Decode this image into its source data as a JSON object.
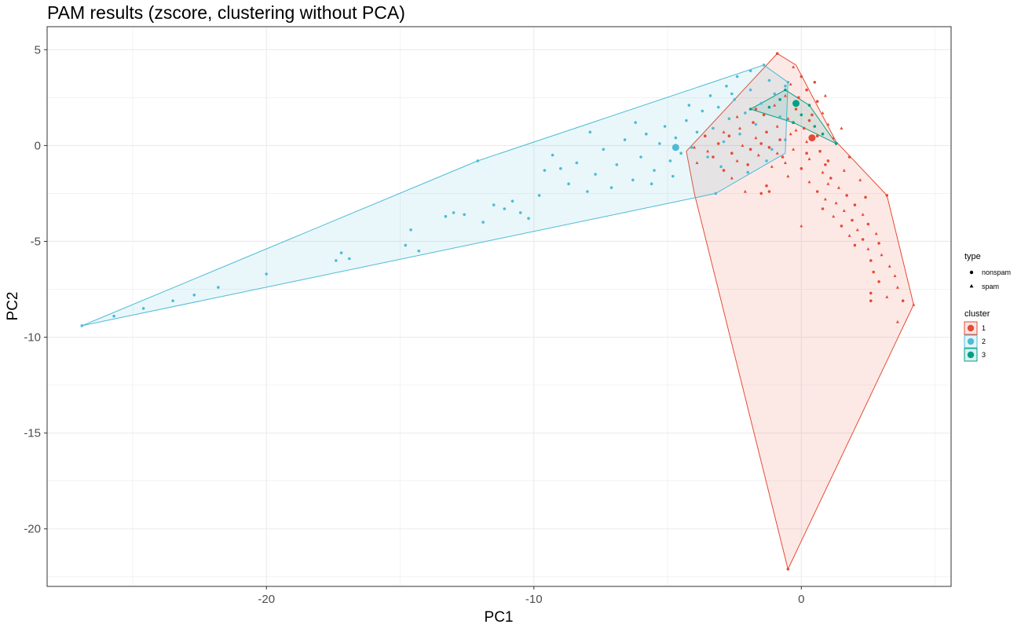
{
  "colors": {
    "cluster1": "#E64B35",
    "cluster2": "#4DBBD5",
    "cluster3": "#00A087",
    "grid": "#ebebeb",
    "panel_border": "#333333"
  },
  "chart_data": {
    "type": "scatter",
    "title": "PAM results (zscore, clustering without PCA)",
    "xlabel": "PC1",
    "ylabel": "PC2",
    "xlim": [
      -28.2,
      5.6
    ],
    "ylim": [
      -23.0,
      6.2
    ],
    "x_ticks": [
      -20,
      -10,
      0
    ],
    "x_tick_labels": [
      "-20",
      "-10",
      "0"
    ],
    "y_ticks": [
      5,
      0,
      -5,
      -10,
      -15,
      -20
    ],
    "y_tick_labels": [
      "5",
      "0",
      "-5",
      "-10",
      "-15",
      "-20"
    ],
    "grid": true,
    "legend_position": "right",
    "legend_type": {
      "title": "type",
      "entries": [
        {
          "label": "nonspam",
          "icon": "circle-icon"
        },
        {
          "label": "spam",
          "icon": "triangle-icon"
        }
      ]
    },
    "legend_cluster": {
      "title": "cluster",
      "entries": [
        {
          "label": "1",
          "color_key": "cluster1"
        },
        {
          "label": "2",
          "color_key": "cluster2"
        },
        {
          "label": "3",
          "color_key": "cluster3"
        }
      ]
    },
    "series": [
      {
        "cluster": "1",
        "color_key": "cluster1",
        "hull": [
          [
            -0.9,
            4.8
          ],
          [
            -0.2,
            4.2
          ],
          [
            1.3,
            0.2
          ],
          [
            3.2,
            -2.6
          ],
          [
            4.2,
            -8.3
          ],
          [
            -0.5,
            -22.1
          ],
          [
            -4.0,
            -2.5
          ],
          [
            -4.3,
            -0.3
          ]
        ],
        "medoid": [
          0.4,
          0.4
        ],
        "points": [
          [
            -0.9,
            4.8
          ],
          [
            -0.3,
            4.1
          ],
          [
            0.0,
            3.6
          ],
          [
            -0.4,
            3.2
          ],
          [
            0.2,
            2.9
          ],
          [
            -0.6,
            2.6
          ],
          [
            0.6,
            2.3
          ],
          [
            -1.0,
            2.1
          ],
          [
            -0.2,
            1.9
          ],
          [
            0.8,
            1.7
          ],
          [
            -1.4,
            1.6
          ],
          [
            -0.5,
            1.4
          ],
          [
            0.3,
            1.3
          ],
          [
            1.0,
            1.1
          ],
          [
            -1.8,
            1.2
          ],
          [
            -0.9,
            1.0
          ],
          [
            0.1,
            0.9
          ],
          [
            -2.3,
            0.9
          ],
          [
            -1.3,
            0.7
          ],
          [
            -0.4,
            0.6
          ],
          [
            0.6,
            0.5
          ],
          [
            1.2,
            0.4
          ],
          [
            -2.7,
            0.5
          ],
          [
            -1.7,
            0.4
          ],
          [
            -0.8,
            0.3
          ],
          [
            0.2,
            0.2
          ],
          [
            -3.1,
            0.1
          ],
          [
            -2.2,
            0.0
          ],
          [
            -1.2,
            -0.1
          ],
          [
            -0.3,
            -0.2
          ],
          [
            0.7,
            -0.3
          ],
          [
            -3.5,
            -0.3
          ],
          [
            -2.6,
            -0.4
          ],
          [
            -1.6,
            -0.5
          ],
          [
            -0.7,
            -0.6
          ],
          [
            0.3,
            -0.7
          ],
          [
            1.0,
            -0.8
          ],
          [
            -3.9,
            -0.9
          ],
          [
            -2.0,
            -1.0
          ],
          [
            -1.1,
            -1.1
          ],
          [
            0.0,
            -1.2
          ],
          [
            0.8,
            -1.4
          ],
          [
            -2.9,
            -1.3
          ],
          [
            -0.5,
            -1.6
          ],
          [
            1.1,
            -1.7
          ],
          [
            0.3,
            -1.9
          ],
          [
            -1.3,
            -2.1
          ],
          [
            1.4,
            -2.2
          ],
          [
            0.6,
            -2.4
          ],
          [
            -2.1,
            -2.4
          ],
          [
            1.7,
            -2.6
          ],
          [
            0.9,
            -2.8
          ],
          [
            -1.5,
            -2.5
          ],
          [
            1.3,
            -3.0
          ],
          [
            2.0,
            -3.1
          ],
          [
            1.6,
            -3.4
          ],
          [
            0.8,
            -3.3
          ],
          [
            2.3,
            -3.6
          ],
          [
            1.9,
            -3.9
          ],
          [
            1.2,
            -3.7
          ],
          [
            2.5,
            -4.1
          ],
          [
            2.1,
            -4.4
          ],
          [
            1.5,
            -4.2
          ],
          [
            2.8,
            -4.6
          ],
          [
            2.3,
            -4.9
          ],
          [
            1.8,
            -4.7
          ],
          [
            2.9,
            -5.1
          ],
          [
            2.5,
            -5.4
          ],
          [
            2.0,
            -5.2
          ],
          [
            3.0,
            -5.7
          ],
          [
            2.6,
            -6.0
          ],
          [
            3.3,
            -6.3
          ],
          [
            2.7,
            -6.6
          ],
          [
            3.5,
            -6.8
          ],
          [
            2.9,
            -7.1
          ],
          [
            3.6,
            -7.4
          ],
          [
            2.6,
            -7.7
          ],
          [
            3.2,
            -7.9
          ],
          [
            3.8,
            -8.1
          ],
          [
            4.2,
            -8.3
          ],
          [
            2.6,
            -8.1
          ],
          [
            3.6,
            -9.2
          ],
          [
            -0.5,
            -22.1
          ],
          [
            0.0,
            -4.2
          ],
          [
            -1.2,
            -2.4
          ],
          [
            -2.6,
            -1.7
          ],
          [
            -3.6,
            0.5
          ],
          [
            -4.0,
            -0.1
          ],
          [
            -1.7,
            1.9
          ],
          [
            -2.4,
            1.5
          ],
          [
            0.5,
            3.3
          ],
          [
            0.9,
            2.6
          ],
          [
            -0.1,
            2.5
          ],
          [
            1.5,
            0.9
          ],
          [
            1.8,
            -0.6
          ],
          [
            2.2,
            -1.8
          ],
          [
            3.2,
            -2.6
          ],
          [
            -0.6,
            -0.9
          ],
          [
            -1.9,
            -0.2
          ],
          [
            -2.9,
            0.7
          ],
          [
            0.4,
            1.6
          ],
          [
            -0.2,
            0.8
          ],
          [
            0.9,
            -1.0
          ],
          [
            1.6,
            -1.3
          ],
          [
            -1.5,
            0.1
          ],
          [
            -0.9,
            -0.4
          ],
          [
            2.4,
            -2.7
          ],
          [
            1.0,
            -2.0
          ],
          [
            -3.3,
            -0.6
          ],
          [
            -2.4,
            -0.8
          ],
          [
            0.2,
            -0.4
          ],
          [
            -0.3,
            1.2
          ]
        ]
      },
      {
        "cluster": "2",
        "color_key": "cluster2",
        "hull": [
          [
            -26.9,
            -9.4
          ],
          [
            -12.1,
            -0.8
          ],
          [
            -1.4,
            4.2
          ],
          [
            -0.5,
            3.3
          ],
          [
            -0.6,
            -0.4
          ],
          [
            -3.2,
            -2.5
          ]
        ],
        "medoid": [
          -4.7,
          -0.1
        ],
        "points": [
          [
            -26.9,
            -9.4
          ],
          [
            -25.7,
            -8.9
          ],
          [
            -24.6,
            -8.5
          ],
          [
            -23.5,
            -8.1
          ],
          [
            -22.7,
            -7.8
          ],
          [
            -21.8,
            -7.4
          ],
          [
            -20.0,
            -6.7
          ],
          [
            -17.4,
            -6.0
          ],
          [
            -17.2,
            -5.6
          ],
          [
            -16.9,
            -5.9
          ],
          [
            -14.8,
            -5.2
          ],
          [
            -14.6,
            -4.4
          ],
          [
            -14.3,
            -5.5
          ],
          [
            -13.3,
            -3.7
          ],
          [
            -13.0,
            -3.5
          ],
          [
            -12.6,
            -3.6
          ],
          [
            -12.1,
            -0.8
          ],
          [
            -11.9,
            -4.0
          ],
          [
            -11.5,
            -3.1
          ],
          [
            -11.1,
            -3.3
          ],
          [
            -10.8,
            -2.9
          ],
          [
            -10.5,
            -3.5
          ],
          [
            -9.8,
            -2.6
          ],
          [
            -9.3,
            -0.5
          ],
          [
            -9.0,
            -1.2
          ],
          [
            -8.7,
            -2.0
          ],
          [
            -8.4,
            -0.9
          ],
          [
            -8.0,
            -2.4
          ],
          [
            -7.7,
            -1.5
          ],
          [
            -7.4,
            -0.2
          ],
          [
            -7.1,
            -2.2
          ],
          [
            -6.9,
            -1.0
          ],
          [
            -6.6,
            0.3
          ],
          [
            -6.3,
            -1.8
          ],
          [
            -6.0,
            -0.6
          ],
          [
            -5.8,
            0.6
          ],
          [
            -5.5,
            -1.3
          ],
          [
            -5.3,
            0.1
          ],
          [
            -5.1,
            1.0
          ],
          [
            -4.9,
            -0.8
          ],
          [
            -4.7,
            0.4
          ],
          [
            -4.5,
            -0.4
          ],
          [
            -4.3,
            1.3
          ],
          [
            -4.1,
            -0.1
          ],
          [
            -3.9,
            0.7
          ],
          [
            -3.7,
            1.8
          ],
          [
            -3.5,
            -0.6
          ],
          [
            -3.3,
            0.9
          ],
          [
            -3.1,
            2.0
          ],
          [
            -2.9,
            0.2
          ],
          [
            -2.7,
            1.4
          ],
          [
            -2.5,
            2.4
          ],
          [
            -2.3,
            0.6
          ],
          [
            -2.1,
            1.7
          ],
          [
            -1.9,
            2.9
          ],
          [
            -1.7,
            1.1
          ],
          [
            -1.5,
            2.2
          ],
          [
            -1.4,
            4.2
          ],
          [
            -1.2,
            3.4
          ],
          [
            -1.0,
            2.7
          ],
          [
            -0.8,
            1.5
          ],
          [
            -0.6,
            3.1
          ],
          [
            -0.5,
            3.3
          ],
          [
            -0.6,
            0.3
          ],
          [
            -3.2,
            -2.5
          ],
          [
            -2.0,
            -1.4
          ],
          [
            -1.3,
            -0.8
          ],
          [
            -2.4,
            3.6
          ],
          [
            -1.9,
            3.9
          ],
          [
            -2.8,
            3.1
          ],
          [
            -3.4,
            2.6
          ],
          [
            -4.2,
            2.1
          ],
          [
            -6.2,
            1.2
          ],
          [
            -5.6,
            -2.0
          ],
          [
            -7.9,
            0.7
          ],
          [
            -9.6,
            -1.3
          ],
          [
            -10.2,
            -3.8
          ],
          [
            -4.8,
            -1.6
          ],
          [
            -3.0,
            -1.1
          ],
          [
            -1.1,
            -0.2
          ],
          [
            -2.6,
            2.7
          ]
        ]
      },
      {
        "cluster": "3",
        "color_key": "cluster3",
        "hull": [
          [
            -1.9,
            1.9
          ],
          [
            -0.6,
            2.9
          ],
          [
            0.3,
            2.1
          ],
          [
            1.3,
            0.1
          ],
          [
            -0.3,
            1.2
          ]
        ],
        "medoid": [
          -0.2,
          2.2
        ],
        "points": [
          [
            -1.9,
            1.9
          ],
          [
            -0.6,
            2.9
          ],
          [
            0.3,
            2.1
          ],
          [
            1.3,
            0.1
          ],
          [
            -0.3,
            1.2
          ],
          [
            -0.2,
            2.2
          ],
          [
            -0.8,
            2.4
          ],
          [
            0.0,
            1.6
          ],
          [
            0.5,
            1.0
          ],
          [
            -1.2,
            2.0
          ],
          [
            0.8,
            0.6
          ]
        ]
      }
    ]
  }
}
